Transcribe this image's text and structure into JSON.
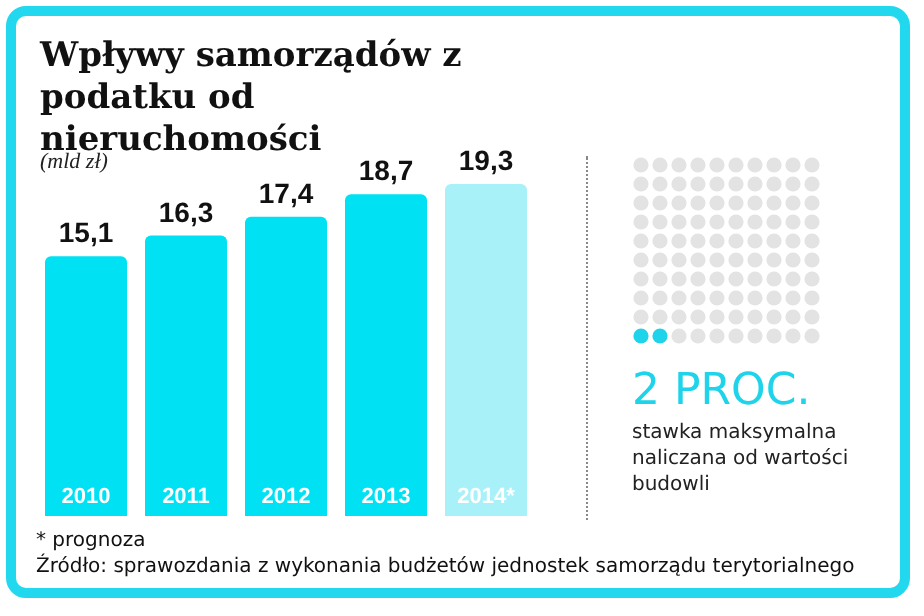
{
  "chart_data": [
    {
      "type": "bar",
      "title": "Wpływy samorządów z podatku od nieruchomości",
      "ylabel": "(mld zł)",
      "categories": [
        "2010",
        "2011",
        "2012",
        "2013",
        "2014*"
      ],
      "values": [
        15.1,
        16.3,
        17.4,
        18.7,
        19.3
      ],
      "colors": [
        "#00e1f3",
        "#00e1f3",
        "#00e1f3",
        "#00e1f3",
        "#a9f1f9"
      ],
      "value_labels": [
        "15,1",
        "16,3",
        "17,4",
        "18,7",
        "19,3"
      ],
      "annotations": [
        "* prognoza",
        "Źródło: sprawozdania z wykonania budżetów jednostek samorządu terytorialnego"
      ]
    },
    {
      "type": "other",
      "title": "2 PROC.",
      "subtitle": "stawka maksymalna naliczana od wartości budowli"
    }
  ]
}
